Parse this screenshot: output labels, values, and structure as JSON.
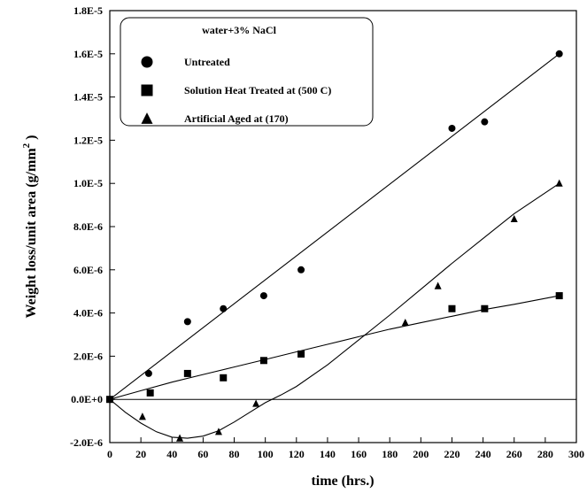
{
  "chart_data": {
    "type": "scatter",
    "title": "",
    "xlabel": "time (hrs.)",
    "ylabel_main": "Weight loss/unit area (g/mm",
    "ylabel_sup": "2",
    "ylabel_tail": " )",
    "xlim": [
      0,
      300
    ],
    "ylim": [
      -2e-06,
      1.8e-05
    ],
    "x_ticks": [
      0,
      20,
      40,
      60,
      80,
      100,
      120,
      140,
      160,
      180,
      200,
      220,
      240,
      260,
      280,
      300
    ],
    "x_tick_labels": [
      "0",
      "20",
      "40",
      "60",
      "80",
      "100",
      "120",
      "140",
      "160",
      "180",
      "200",
      "220",
      "240",
      "260",
      "280",
      "300"
    ],
    "y_ticks": [
      -2e-06,
      0,
      2e-06,
      4e-06,
      6e-06,
      8e-06,
      1e-05,
      1.2e-05,
      1.4e-05,
      1.6e-05,
      1.8e-05
    ],
    "y_tick_labels": [
      "-2.0E-6",
      "0.0E+0",
      "2.0E-6",
      "4.0E-6",
      "6.0E-6",
      "8.0E-6",
      "1.0E-5",
      "1.2E-5",
      "1.4E-5",
      "1.6E-5",
      "1.8E-5"
    ],
    "grid": false,
    "zero_line": true,
    "legend": {
      "title": "water+3% NaCl",
      "position": "top-left"
    },
    "series": [
      {
        "name": "Untreated",
        "marker": "circle",
        "color": "#000000",
        "x": [
          0,
          25,
          50,
          73,
          99,
          123,
          220,
          241,
          289
        ],
        "y": [
          0,
          1.2e-06,
          3.6e-06,
          4.2e-06,
          4.8e-06,
          6e-06,
          1.255e-05,
          1.285e-05,
          1.6e-05
        ],
        "fit": {
          "x": [
            0,
            289
          ],
          "y": [
            0,
            1.6e-05
          ]
        }
      },
      {
        "name": "Solution Heat Treated at (500 C)",
        "marker": "square",
        "color": "#000000",
        "x": [
          0,
          26,
          50,
          73,
          99,
          123,
          220,
          241,
          289
        ],
        "y": [
          0,
          3e-07,
          1.2e-06,
          1e-06,
          1.8e-06,
          2.1e-06,
          4.2e-06,
          4.2e-06,
          4.8e-06
        ],
        "fit": {
          "x": [
            0,
            20,
            40,
            60,
            80,
            100,
            120,
            140,
            160,
            180,
            200,
            220,
            240,
            260,
            289
          ],
          "y": [
            0,
            4e-07,
            8e-07,
            1.15e-06,
            1.5e-06,
            1.85e-06,
            2.2e-06,
            2.55e-06,
            2.9e-06,
            3.25e-06,
            3.55e-06,
            3.85e-06,
            4.15e-06,
            4.4e-06,
            4.8e-06
          ]
        }
      },
      {
        "name": "Artificial Aged at (170)",
        "marker": "triangle",
        "color": "#000000",
        "x": [
          0,
          21,
          45,
          70,
          94,
          190,
          211,
          260,
          289
        ],
        "y": [
          0,
          -8e-07,
          -1.8e-06,
          -1.5e-06,
          -2e-07,
          3.55e-06,
          5.25e-06,
          8.35e-06,
          1e-05
        ],
        "fit": {
          "x": [
            0,
            10,
            20,
            30,
            40,
            50,
            60,
            70,
            80,
            90,
            100,
            110,
            120,
            140,
            160,
            180,
            200,
            220,
            240,
            260,
            289
          ],
          "y": [
            0,
            -6e-07,
            -1.1e-06,
            -1.5e-06,
            -1.75e-06,
            -1.8e-06,
            -1.7e-06,
            -1.45e-06,
            -1.05e-06,
            -6e-07,
            -1.5e-07,
            2e-07,
            6e-07,
            1.6e-06,
            2.75e-06,
            3.9e-06,
            5.1e-06,
            6.3e-06,
            7.45e-06,
            8.6e-06,
            1e-05
          ]
        }
      }
    ]
  }
}
